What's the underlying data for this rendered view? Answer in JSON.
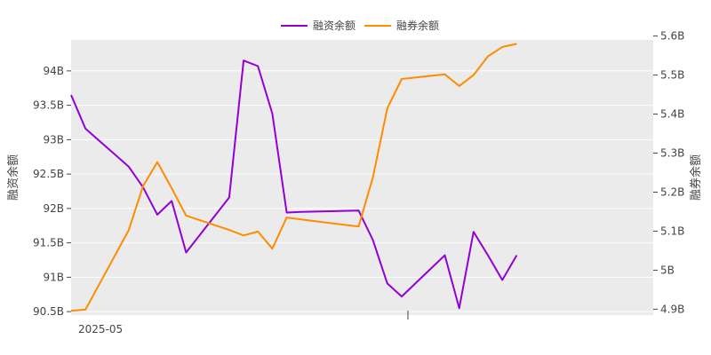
{
  "chart_data": {
    "type": "line",
    "xlabel": "",
    "x_tick_labels": [
      "2025-05"
    ],
    "left_axis": {
      "label": "融资余额",
      "ylim": [
        90.45,
        94.45
      ],
      "ticks": [
        90.5,
        91,
        91.5,
        92,
        92.5,
        93,
        93.5,
        94
      ],
      "tick_labels": [
        "90.5B",
        "91B",
        "91.5B",
        "92B",
        "92.5B",
        "93B",
        "93.5B",
        "94B"
      ]
    },
    "right_axis": {
      "label": "融券余额",
      "ylim": [
        4.885,
        5.59
      ],
      "ticks": [
        4.9,
        5.0,
        5.1,
        5.2,
        5.3,
        5.4,
        5.5,
        5.6
      ],
      "tick_labels": [
        "4.9B",
        "5B",
        "5.1B",
        "5.2B",
        "5.3B",
        "5.4B",
        "5.5B",
        "5.6B"
      ]
    },
    "grid": true,
    "legend": {
      "position": "top-center"
    },
    "x_range": [
      0,
      40.5
    ],
    "series": [
      {
        "name": "融资余额",
        "axis": "left",
        "color": "#9400D3",
        "x": [
          0,
          1,
          4,
          5,
          6,
          7,
          8,
          11,
          12,
          13,
          14,
          15,
          16,
          20,
          21,
          22,
          23,
          24,
          25,
          26,
          27,
          28,
          29,
          30,
          31
        ],
        "y": [
          93.65,
          93.16,
          92.61,
          92.31,
          91.91,
          92.11,
          91.36,
          92.16,
          94.15,
          94.07,
          93.38,
          91.94,
          91.95,
          91.97,
          91.54,
          90.91,
          90.72,
          90.92,
          91.12,
          91.32,
          90.55,
          91.66,
          91.32,
          90.96,
          91.32
        ]
      },
      {
        "name": "融券余额",
        "axis": "right",
        "color": "#FF8C00",
        "x": [
          0,
          1,
          4,
          5,
          6,
          7,
          8,
          11,
          12,
          13,
          14,
          15,
          16,
          20,
          21,
          22,
          23,
          24,
          25,
          26,
          27,
          28,
          29,
          30,
          31
        ],
        "y": [
          4.896,
          4.899,
          5.102,
          5.215,
          5.277,
          5.21,
          5.14,
          5.103,
          5.089,
          5.099,
          5.055,
          5.135,
          5.13,
          5.112,
          5.238,
          5.415,
          5.49,
          5.494,
          5.498,
          5.502,
          5.472,
          5.5,
          5.548,
          5.572,
          5.58
        ]
      }
    ]
  }
}
